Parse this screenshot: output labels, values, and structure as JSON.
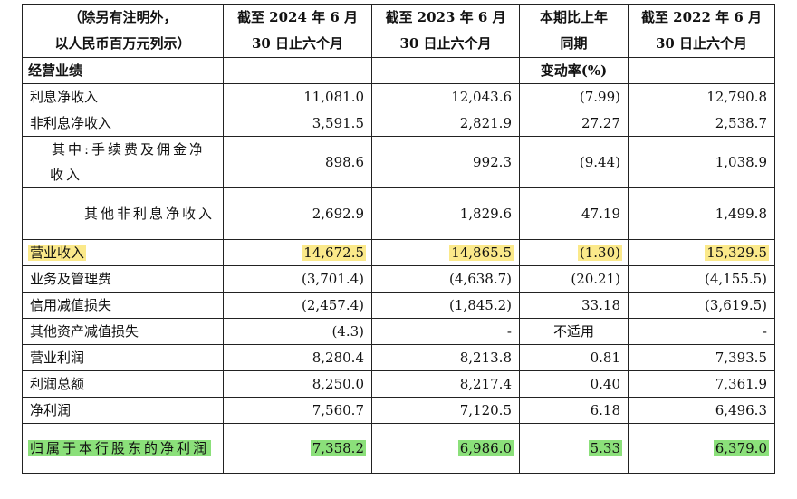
{
  "header": {
    "col0": [
      "（除另有注明外，",
      "以人民币百万元列示）"
    ],
    "col1": [
      "截至 2024 年 6 月",
      "30 日止六个月"
    ],
    "col2": [
      "截至 2023 年 6 月",
      "30 日止六个月"
    ],
    "col3": [
      "本期比上年",
      "同期"
    ],
    "col4": [
      "截至 2022 年 6 月",
      "30 日止六个月"
    ]
  },
  "section": {
    "label": "经营业绩",
    "change_label": "变动率(%)"
  },
  "rows": [
    {
      "label": "利息净收入",
      "v2024": "11,081.0",
      "v2023": "12,043.6",
      "chg": "(7.99)",
      "v2022": "12,790.8"
    },
    {
      "label": "非利息净收入",
      "v2024": "3,591.5",
      "v2023": "2,821.9",
      "chg": "27.27",
      "v2022": "2,538.7"
    },
    {
      "label": "其中:手续费及佣金净收入",
      "v2024": "898.6",
      "v2023": "992.3",
      "chg": "(9.44)",
      "v2022": "1,038.9"
    },
    {
      "label": "其他非利息净收入",
      "v2024": "2,692.9",
      "v2023": "1,829.6",
      "chg": "47.19",
      "v2022": "1,499.8"
    },
    {
      "label": "营业收入",
      "v2024": "14,672.5",
      "v2023": "14,865.5",
      "chg": "(1.30)",
      "v2022": "15,329.5",
      "highlight": "#fbe98a"
    },
    {
      "label": "业务及管理费",
      "v2024": "(3,701.4)",
      "v2023": "(4,638.7)",
      "chg": "(20.21)",
      "v2022": "(4,155.5)"
    },
    {
      "label": "信用减值损失",
      "v2024": "(2,457.4)",
      "v2023": "(1,845.2)",
      "chg": "33.18",
      "v2022": "(3,619.5)"
    },
    {
      "label": "其他资产减值损失",
      "v2024": "(4.3)",
      "v2023": "-",
      "chg": "不适用",
      "v2022": "-"
    },
    {
      "label": "营业利润",
      "v2024": "8,280.4",
      "v2023": "8,213.8",
      "chg": "0.81",
      "v2022": "7,393.5"
    },
    {
      "label": "利润总额",
      "v2024": "8,250.0",
      "v2023": "8,217.4",
      "chg": "0.40",
      "v2022": "7,361.9"
    },
    {
      "label": "净利润",
      "v2024": "7,560.7",
      "v2023": "7,120.5",
      "chg": "6.18",
      "v2022": "6,496.3"
    },
    {
      "label": "归属于本行股东的净利润",
      "v2024": "7,358.2",
      "v2023": "6,986.0",
      "chg": "5.33",
      "v2022": "6,379.0",
      "highlight": "#8be07a"
    }
  ]
}
